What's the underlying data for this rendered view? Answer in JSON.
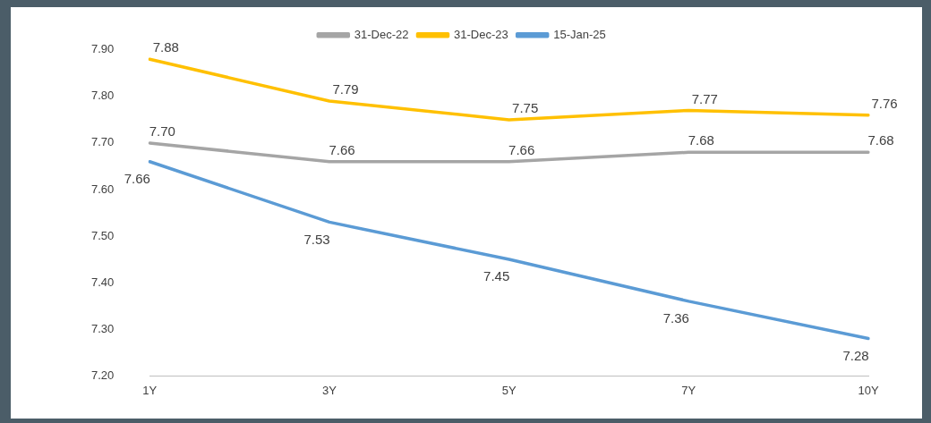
{
  "chart_data": {
    "type": "line",
    "categories": [
      "1Y",
      "3Y",
      "5Y",
      "7Y",
      "10Y"
    ],
    "series": [
      {
        "name": "31-Dec-22",
        "color": "#a5a5a5",
        "values": [
          7.7,
          7.66,
          7.66,
          7.68,
          7.68
        ],
        "value_labels": [
          "7.70",
          "7.66",
          "7.66",
          "7.68",
          "7.68"
        ]
      },
      {
        "name": "31-Dec-23",
        "color": "#ffc000",
        "values": [
          7.88,
          7.79,
          7.75,
          7.77,
          7.76
        ],
        "value_labels": [
          "7.88",
          "7.79",
          "7.75",
          "7.77",
          "7.76"
        ]
      },
      {
        "name": "15-Jan-25",
        "color": "#5b9bd5",
        "values": [
          7.66,
          7.53,
          7.45,
          7.36,
          7.28
        ],
        "value_labels": [
          "7.66",
          "7.53",
          "7.45",
          "7.36",
          "7.28"
        ]
      }
    ],
    "ylim": [
      7.2,
      7.9
    ],
    "yticks": [
      {
        "value": 7.2,
        "label": "7.20"
      },
      {
        "value": 7.3,
        "label": "7.30"
      },
      {
        "value": 7.4,
        "label": "7.40"
      },
      {
        "value": 7.5,
        "label": "7.50"
      },
      {
        "value": 7.6,
        "label": "7.60"
      },
      {
        "value": 7.7,
        "label": "7.70"
      },
      {
        "value": 7.8,
        "label": "7.80"
      },
      {
        "value": 7.9,
        "label": "7.90"
      }
    ],
    "grid": false,
    "legend": "top",
    "marker": "none",
    "line_style": "solid"
  }
}
